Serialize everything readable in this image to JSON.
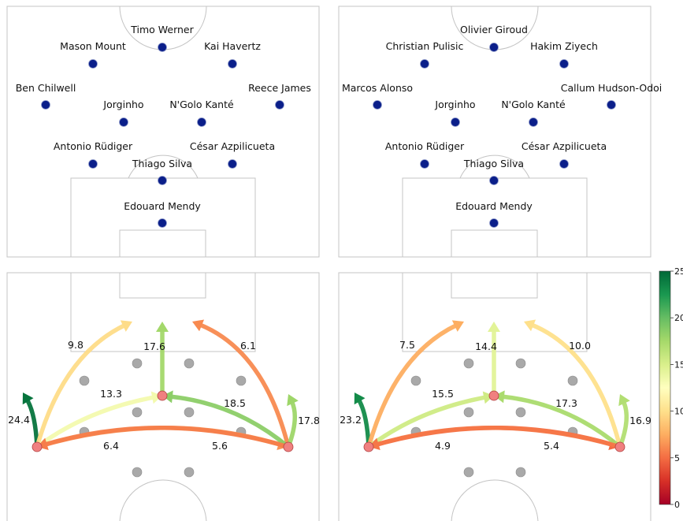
{
  "lineups": [
    {
      "players": [
        {
          "name": "Timo Werner"
        },
        {
          "name": "Mason Mount"
        },
        {
          "name": "Kai Havertz"
        },
        {
          "name": "Ben Chilwell"
        },
        {
          "name": "Jorginho"
        },
        {
          "name": "N'Golo Kanté"
        },
        {
          "name": "Reece James"
        },
        {
          "name": "Antonio Rüdiger"
        },
        {
          "name": "César Azpilicueta"
        },
        {
          "name": "Thiago Silva"
        },
        {
          "name": "Edouard Mendy"
        }
      ]
    },
    {
      "players": [
        {
          "name": "Olivier Giroud"
        },
        {
          "name": "Christian Pulisic"
        },
        {
          "name": "Hakim Ziyech"
        },
        {
          "name": "Marcos Alonso"
        },
        {
          "name": "Jorginho"
        },
        {
          "name": "N'Golo Kanté"
        },
        {
          "name": "Callum Hudson-Odoi"
        },
        {
          "name": "Antonio Rüdiger"
        },
        {
          "name": "César Azpilicueta"
        },
        {
          "name": "Thiago Silva"
        },
        {
          "name": "Edouard Mendy"
        }
      ]
    }
  ],
  "chart_data": [
    {
      "type": "flow",
      "flows": [
        {
          "from": "left-back",
          "to": "wide-left",
          "value": 24.4
        },
        {
          "from": "left-back",
          "to": "forward-left",
          "value": 9.8
        },
        {
          "from": "left-back",
          "to": "center-back",
          "value": 13.3
        },
        {
          "from": "left-back",
          "to": "right-back",
          "value": 6.4
        },
        {
          "from": "center-back",
          "to": "forward-center",
          "value": 17.6
        },
        {
          "from": "right-back",
          "to": "forward-right",
          "value": 6.1
        },
        {
          "from": "right-back",
          "to": "center-back",
          "value": 18.5
        },
        {
          "from": "right-back",
          "to": "left-back",
          "value": 5.6
        },
        {
          "from": "right-back",
          "to": "wide-right",
          "value": 17.8
        }
      ]
    },
    {
      "type": "flow",
      "flows": [
        {
          "from": "left-back",
          "to": "wide-left",
          "value": 23.2
        },
        {
          "from": "left-back",
          "to": "forward-left",
          "value": 7.5
        },
        {
          "from": "left-back",
          "to": "center-back",
          "value": 15.5
        },
        {
          "from": "left-back",
          "to": "right-back",
          "value": 4.9
        },
        {
          "from": "center-back",
          "to": "forward-center",
          "value": 14.4
        },
        {
          "from": "right-back",
          "to": "forward-right",
          "value": 10.0
        },
        {
          "from": "right-back",
          "to": "center-back",
          "value": 17.3
        },
        {
          "from": "right-back",
          "to": "left-back",
          "value": 5.4
        },
        {
          "from": "right-back",
          "to": "wide-right",
          "value": 16.9
        }
      ]
    }
  ],
  "colorbar": {
    "colormap": "RdYlGn",
    "range": [
      0,
      25
    ],
    "ticks": [
      "0",
      "5",
      "10",
      "15",
      "20",
      "25"
    ]
  }
}
